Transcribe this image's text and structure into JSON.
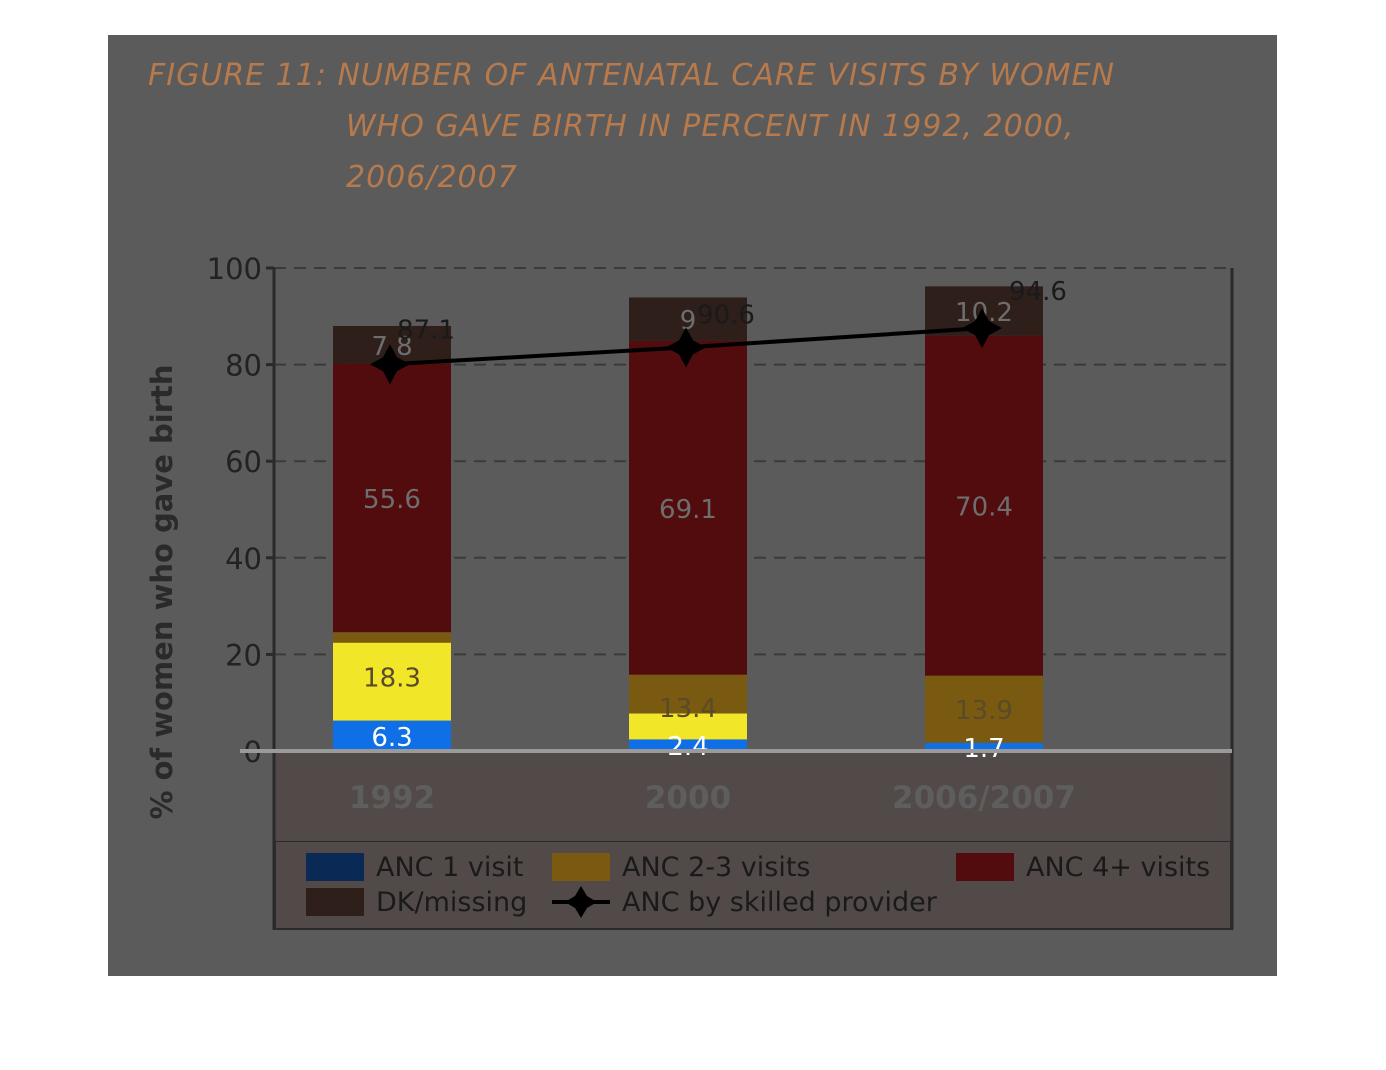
{
  "figure": {
    "title_lines": [
      "FIGURE 11: NUMBER OF ANTENATAL CARE VISITS  BY WOMEN",
      "WHO GAVE BIRTH IN PERCENT IN 1992, 2000,",
      "2006/2007"
    ]
  },
  "colors": {
    "panel": "#5b5b5b",
    "anc1": "#0f6fe6",
    "anc23": "#7a5a10",
    "anc23_bright": "#f2e628",
    "anc4": "#520c0e",
    "dk": "#2e1f1a",
    "line": "#000000"
  },
  "chart_data": {
    "type": "bar",
    "stacked": true,
    "categories": [
      "1992",
      "2000",
      "2006/2007"
    ],
    "ylabel": "% of women who gave birth",
    "xlabel": "",
    "ylim": [
      0,
      100
    ],
    "yticks": [
      "0",
      "20",
      "40",
      "60",
      "80",
      "100"
    ],
    "grid": true,
    "legend_position": "bottom",
    "series": [
      {
        "name": "ANC 1 visit",
        "values": [
          6.3,
          2.4,
          1.7
        ],
        "labels": [
          "6.3",
          "2.4",
          "1.7"
        ]
      },
      {
        "name": "ANC 2-3 visits",
        "values": [
          18.3,
          13.4,
          13.9
        ],
        "labels": [
          "18.3",
          "13.4",
          "13.9"
        ]
      },
      {
        "name": "ANC 4+ visits",
        "values": [
          55.6,
          69.1,
          70.4
        ],
        "labels": [
          "55.6",
          "69.1",
          "70.4"
        ]
      },
      {
        "name": "DK/missing",
        "values": [
          7.8,
          9,
          10.2
        ],
        "labels": [
          "7.8",
          "9",
          "10.2"
        ]
      }
    ],
    "line_series": {
      "name": "ANC by skilled provider",
      "values": [
        87.1,
        90.6,
        94.6
      ],
      "labels": [
        "87.1",
        "90.6",
        "94.6"
      ]
    }
  }
}
